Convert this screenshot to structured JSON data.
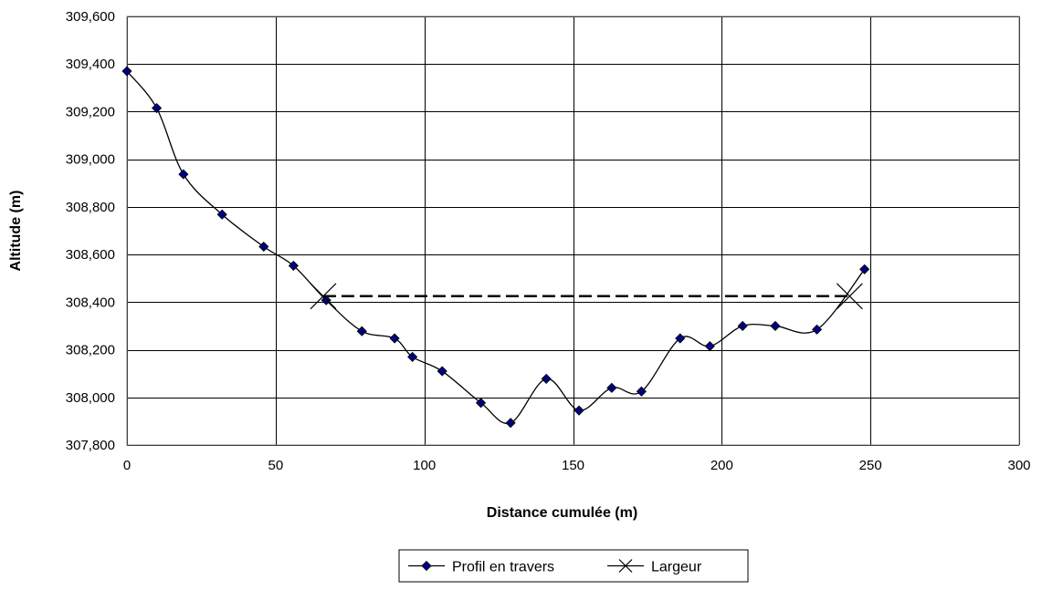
{
  "chart_data": {
    "type": "line",
    "xlabel": "Distance cumulée (m)",
    "ylabel": "Altitude (m)",
    "xlim": [
      0,
      300
    ],
    "ylim": [
      307800,
      309600
    ],
    "x_ticks": [
      0,
      50,
      100,
      150,
      200,
      250,
      300
    ],
    "y_ticks": [
      307800,
      308000,
      308200,
      308400,
      308600,
      308800,
      309000,
      309200,
      309400,
      309600
    ],
    "x_tick_labels": [
      "0",
      "50",
      "100",
      "150",
      "200",
      "250",
      "300"
    ],
    "y_tick_labels": [
      "307,800",
      "308,000",
      "308,200",
      "308,400",
      "308,600",
      "308,800",
      "309,000",
      "309,200",
      "309,400",
      "309,600"
    ],
    "grid": true,
    "legend_position": "bottom",
    "series": [
      {
        "name": "Profil en travers",
        "color": "#000080",
        "line_color": "#000000",
        "marker": "diamond",
        "smooth": true,
        "x": [
          0,
          10,
          19,
          32,
          46,
          56,
          67,
          79,
          90,
          96,
          106,
          119,
          129,
          141,
          152,
          163,
          173,
          186,
          196,
          207,
          218,
          232,
          248
        ],
        "y": [
          309370,
          309215,
          308937,
          308768,
          308633,
          308553,
          308408,
          308278,
          308248,
          308170,
          308110,
          307977,
          307893,
          308078,
          307945,
          308040,
          308025,
          308248,
          308215,
          308300,
          308300,
          308285,
          308538
        ]
      },
      {
        "name": "Largeur",
        "color": "#000000",
        "marker": "x",
        "dashed": true,
        "x": [
          66,
          243
        ],
        "y": [
          308425,
          308425
        ]
      }
    ]
  }
}
